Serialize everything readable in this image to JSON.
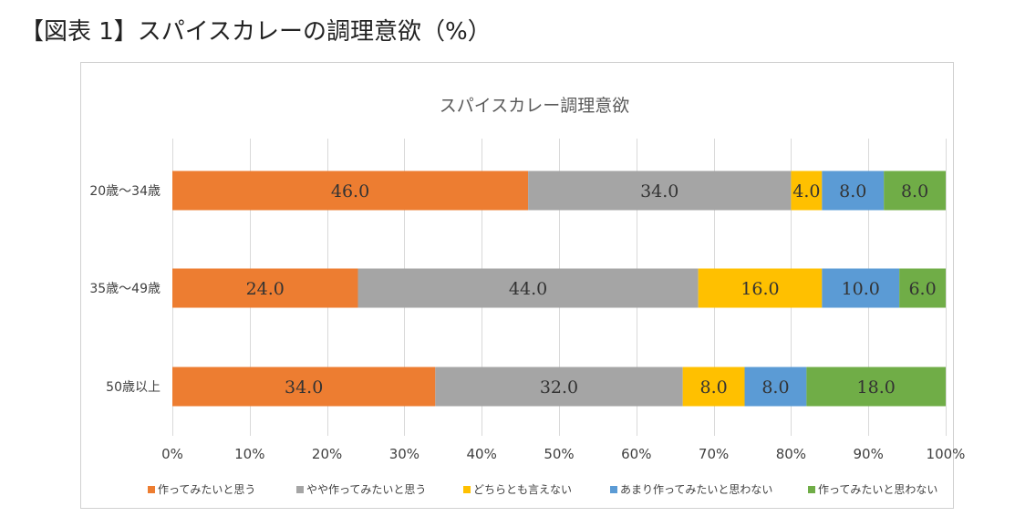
{
  "page_title": "【図表 1】スパイスカレーの調理意欲（%）",
  "chart_data": {
    "type": "stacked-bar-horizontal-100",
    "title": "スパイスカレー調理意欲",
    "categories": [
      "20歳〜34歳",
      "35歳〜49歳",
      "50歳以上"
    ],
    "series": [
      {
        "name": "作ってみたいと思う",
        "color": "#ED7D31",
        "values": [
          46.0,
          24.0,
          34.0
        ]
      },
      {
        "name": "やや作ってみたいと思う",
        "color": "#A5A5A5",
        "values": [
          34.0,
          44.0,
          32.0
        ]
      },
      {
        "name": "どちらとも言えない",
        "color": "#FFC000",
        "values": [
          4.0,
          16.0,
          8.0
        ]
      },
      {
        "name": "あまり作ってみたいと思わない",
        "color": "#5B9BD5",
        "values": [
          8.0,
          10.0,
          8.0
        ]
      },
      {
        "name": "作ってみたいと思わない",
        "color": "#70AD47",
        "values": [
          8.0,
          6.0,
          18.0
        ]
      }
    ],
    "xlim": [
      0,
      100
    ],
    "xticks": [
      "0%",
      "10%",
      "20%",
      "30%",
      "40%",
      "50%",
      "60%",
      "70%",
      "80%",
      "90%",
      "100%"
    ],
    "grid": true,
    "legend": "bottom"
  }
}
